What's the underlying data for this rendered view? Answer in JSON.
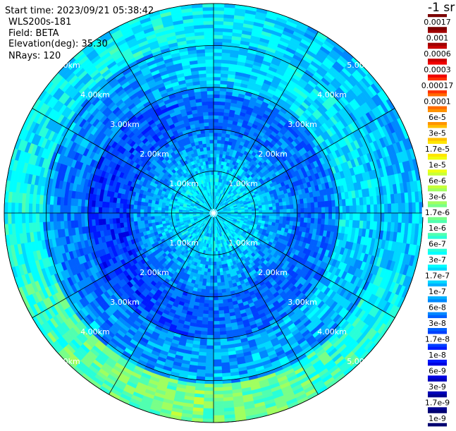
{
  "info": {
    "start_time": "Start time: 2023/09/21 05:38:42",
    "device": "WLS200s-181",
    "field": "Field: BETA",
    "elevation": "Elevation(deg): 35.30",
    "nrays": "NRays: 120"
  },
  "colorbar": {
    "title": "-1 sr",
    "labels": [
      "0.0017",
      "0.001",
      "0.0006",
      "0.0003",
      "0.00017",
      "0.0001",
      "6e-5",
      "3e-5",
      "1.7e-5",
      "1e-5",
      "6e-6",
      "3e-6",
      "1.7e-6",
      "1e-6",
      "6e-7",
      "3e-7",
      "1.7e-7",
      "1e-7",
      "6e-8",
      "3e-8",
      "1.7e-8",
      "1e-8",
      "6e-9",
      "3e-9",
      "1.7e-9",
      "1e-9"
    ],
    "colors": [
      "#7a0000",
      "#a00000",
      "#c80000",
      "#f00000",
      "#ff3000",
      "#ff6a00",
      "#ff9400",
      "#ffbf00",
      "#ffe600",
      "#f0ff10",
      "#c8ff38",
      "#a0ff60",
      "#78ff88",
      "#50ffb0",
      "#28ffd8",
      "#00ffff",
      "#00d8ff",
      "#00b0ff",
      "#0088ff",
      "#0060ff",
      "#0040ff",
      "#0018ff",
      "#0000e0",
      "#0000b8",
      "#000090",
      "#000070"
    ]
  },
  "chart_data": {
    "type": "polar-heatmap",
    "title": "",
    "field": "BETA",
    "units": "sr-1",
    "elevation_deg": 35.3,
    "nrays": 120,
    "scale": "log",
    "color_range": [
      1e-09,
      0.0017
    ],
    "range_rings_km": [
      1.0,
      2.0,
      3.0,
      4.0,
      5.0
    ],
    "ring_labels": [
      "1.00km",
      "2.00km",
      "3.00km",
      "4.00km",
      "5.00km"
    ],
    "max_range_km": 5.0,
    "azimuth_spokes_deg": [
      0,
      30,
      60,
      90,
      120,
      150,
      180,
      210,
      240,
      270,
      300,
      330
    ],
    "field_summary": [
      {
        "range_km": [
          0.0,
          1.0
        ],
        "typical_value": "3e-7"
      },
      {
        "range_km": [
          1.0,
          2.0
        ],
        "typical_value": "3e-7"
      },
      {
        "range_km": [
          2.0,
          3.0
        ],
        "typical_value": "6e-8"
      },
      {
        "range_km": [
          3.0,
          4.2
        ],
        "typical_value": "1.7e-7"
      },
      {
        "range_km": [
          4.2,
          5.0
        ],
        "typical_value": "6e-7"
      }
    ]
  }
}
